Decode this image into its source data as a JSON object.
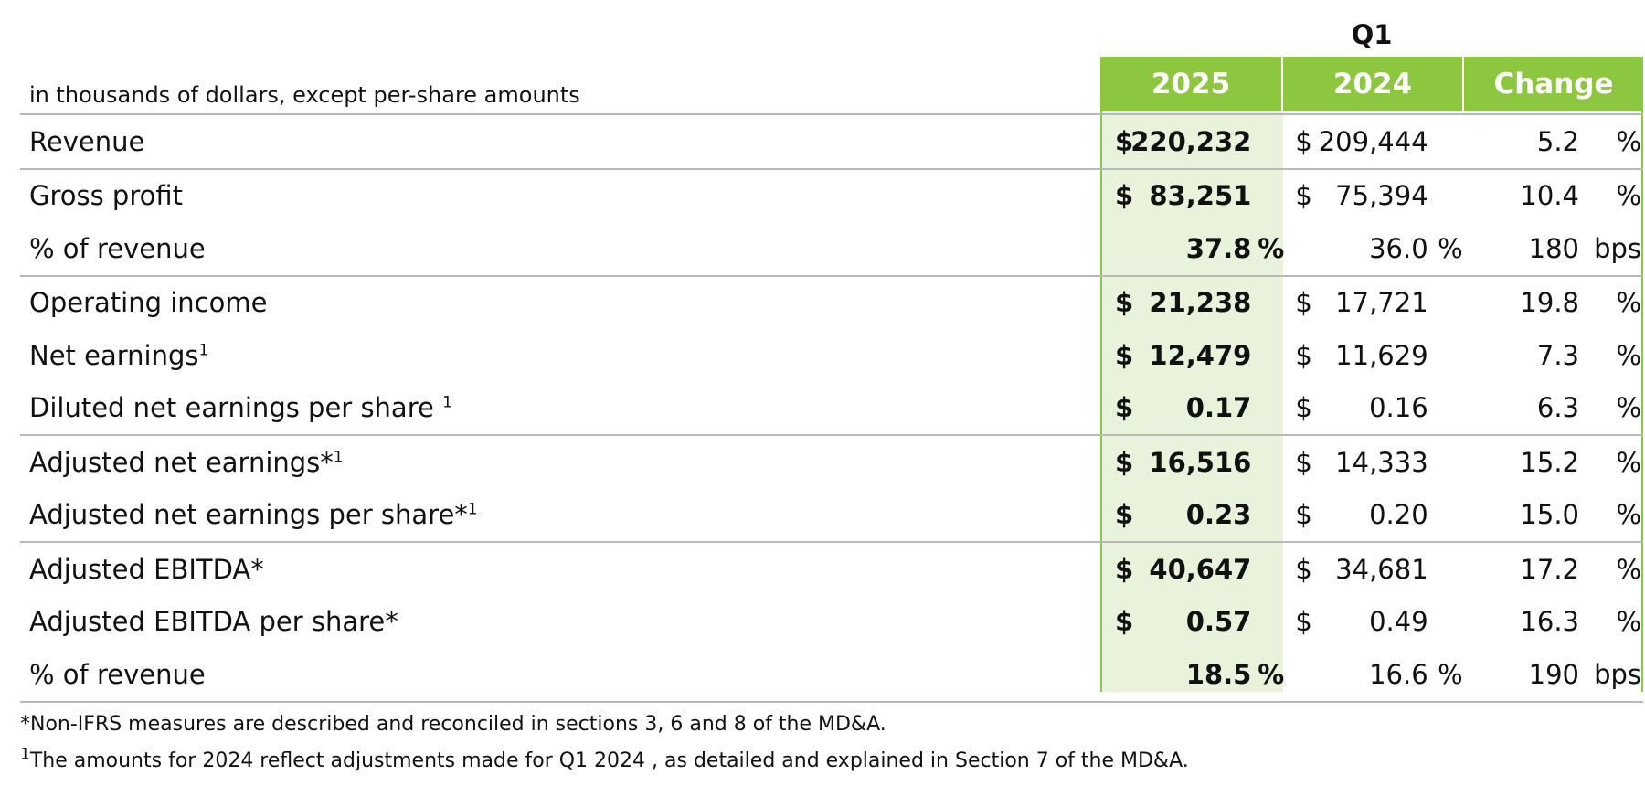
{
  "header": {
    "period": "Q1",
    "units_note": "in thousands of dollars, except per-share amounts",
    "columns": [
      "2025",
      "2024",
      "Change"
    ]
  },
  "rows": [
    {
      "label": "Revenue",
      "sup": "",
      "cur25": "$",
      "v25": "220,232",
      "p25": "",
      "cur24": "$",
      "v24": "209,444",
      "p24": "",
      "change": "5.2",
      "unit": "%"
    },
    {
      "label": "Gross profit",
      "sup": "",
      "cur25": "$",
      "v25": "83,251",
      "p25": "",
      "cur24": "$",
      "v24": "75,394",
      "p24": "",
      "change": "10.4",
      "unit": "%"
    },
    {
      "label": "% of revenue",
      "sup": "",
      "cur25": "",
      "v25": "37.8",
      "p25": "%",
      "cur24": "",
      "v24": "36.0",
      "p24": "%",
      "change": "180",
      "unit": "bps"
    },
    {
      "label": "Operating income",
      "sup": "",
      "cur25": "$",
      "v25": "21,238",
      "p25": "",
      "cur24": "$",
      "v24": "17,721",
      "p24": "",
      "change": "19.8",
      "unit": "%"
    },
    {
      "label": "Net earnings",
      "sup": "1",
      "cur25": "$",
      "v25": "12,479",
      "p25": "",
      "cur24": "$",
      "v24": "11,629",
      "p24": "",
      "change": "7.3",
      "unit": "%"
    },
    {
      "label": "Diluted net earnings per share ",
      "sup": "1",
      "cur25": "$",
      "v25": "0.17",
      "p25": "",
      "cur24": "$",
      "v24": "0.16",
      "p24": "",
      "change": "6.3",
      "unit": "%"
    },
    {
      "label": "Adjusted net earnings*",
      "sup": "1",
      "cur25": "$",
      "v25": "16,516",
      "p25": "",
      "cur24": "$",
      "v24": "14,333",
      "p24": "",
      "change": "15.2",
      "unit": "%"
    },
    {
      "label": "Adjusted net earnings per share*",
      "sup": "1",
      "cur25": "$",
      "v25": "0.23",
      "p25": "",
      "cur24": "$",
      "v24": "0.20",
      "p24": "",
      "change": "15.0",
      "unit": "%"
    },
    {
      "label": "Adjusted EBITDA*",
      "sup": "",
      "cur25": "$",
      "v25": "40,647",
      "p25": "",
      "cur24": "$",
      "v24": "34,681",
      "p24": "",
      "change": "17.2",
      "unit": "%"
    },
    {
      "label": "Adjusted EBITDA per share*",
      "sup": "",
      "cur25": "$",
      "v25": "0.57",
      "p25": "",
      "cur24": "$",
      "v24": "0.49",
      "p24": "",
      "change": "16.3",
      "unit": "%"
    },
    {
      "label": "% of revenue",
      "sup": "",
      "cur25": "",
      "v25": "18.5",
      "p25": "%",
      "cur24": "",
      "v24": "16.6",
      "p24": "%",
      "change": "190",
      "unit": "bps"
    }
  ],
  "footnotes": {
    "star": "*Non-IFRS measures are described and reconciled in sections 3, 6 and 8 of the MD&A.",
    "one_marker": "1",
    "one": "The amounts for 2024 reflect adjustments made for Q1 2024 , as detailed and explained in Section 7 of the MD&A."
  },
  "colors": {
    "accent": "#8dc63f",
    "shade": "#e9f3dc",
    "rule": "#b8b8b8"
  }
}
